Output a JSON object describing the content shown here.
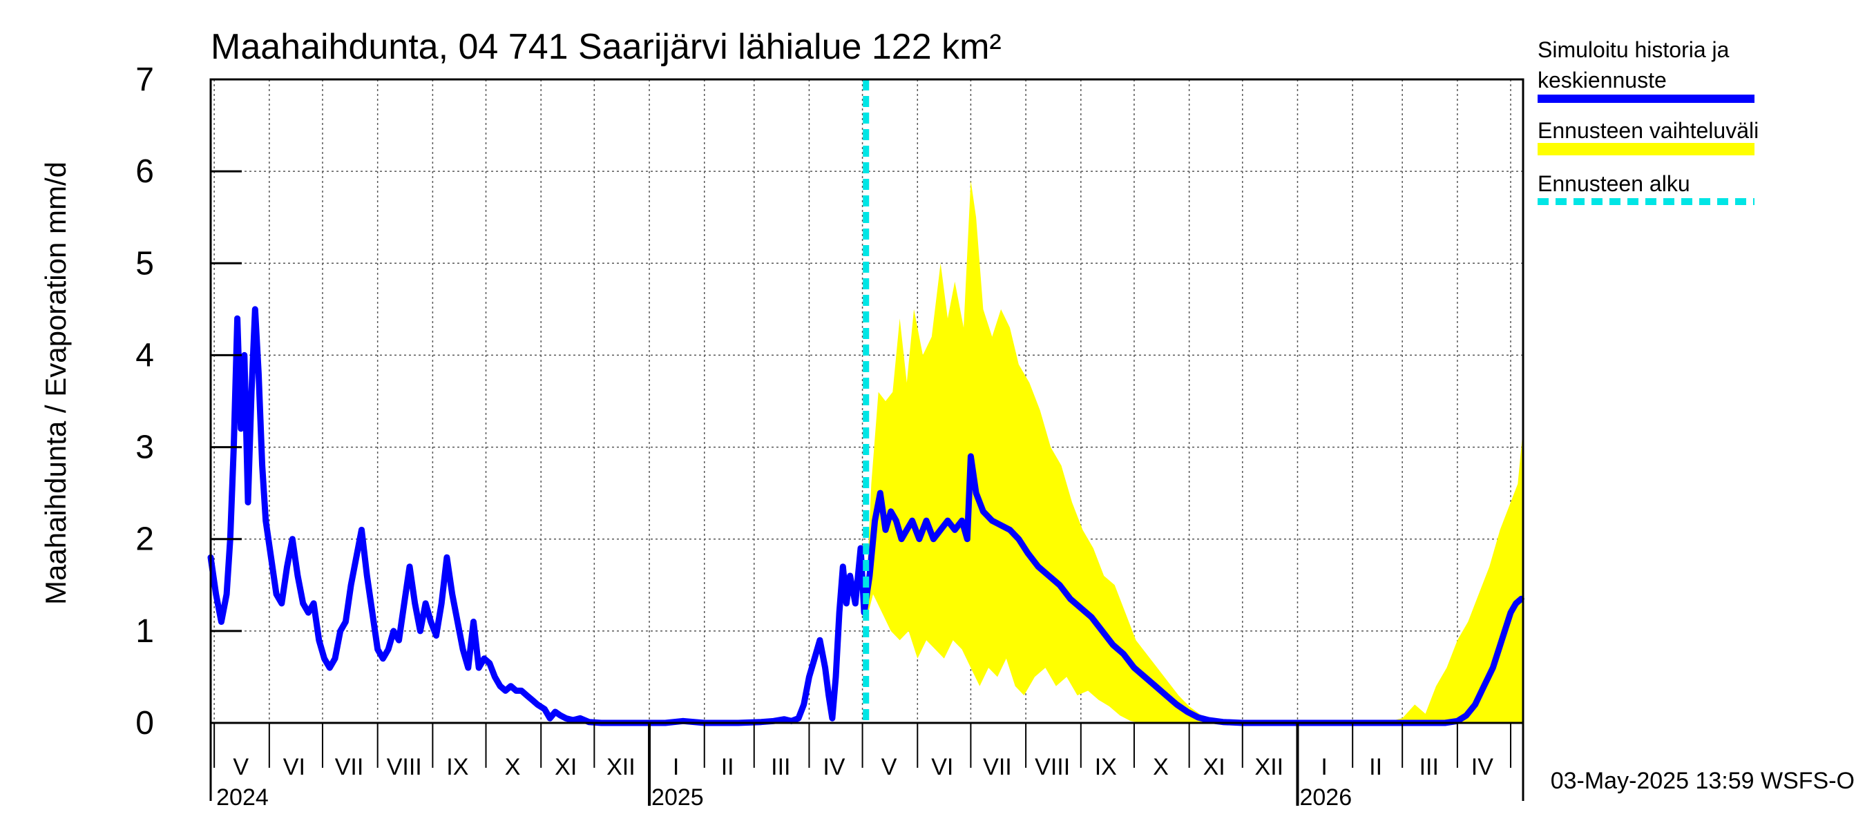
{
  "chart_data": {
    "type": "line",
    "title": "Maahaihdunta, 04 741 Saarijärvi lähialue 122 km²",
    "ylabel": "Maahaihdunta / Evaporation   mm/d",
    "ylim": [
      0,
      7
    ],
    "yticks": [
      "0",
      "1",
      "2",
      "3",
      "4",
      "5",
      "6",
      "7"
    ],
    "x_range": [
      "2024-04-29",
      "2026-05-08"
    ],
    "forecast_start": "2025-05-03",
    "month_ticks": [
      "2024-05-01",
      "2024-06-01",
      "2024-07-01",
      "2024-08-01",
      "2024-09-01",
      "2024-10-01",
      "2024-11-01",
      "2024-12-01",
      "2025-01-01",
      "2025-02-01",
      "2025-03-01",
      "2025-04-01",
      "2025-05-01",
      "2025-06-01",
      "2025-07-01",
      "2025-08-01",
      "2025-09-01",
      "2025-10-01",
      "2025-11-01",
      "2025-12-01",
      "2026-01-01",
      "2026-02-01",
      "2026-03-01",
      "2026-04-01",
      "2026-05-01"
    ],
    "month_labels": [
      {
        "date": "2024-05-16",
        "label": "V"
      },
      {
        "date": "2024-06-15",
        "label": "VI"
      },
      {
        "date": "2024-07-16",
        "label": "VII"
      },
      {
        "date": "2024-08-16",
        "label": "VIII"
      },
      {
        "date": "2024-09-15",
        "label": "IX"
      },
      {
        "date": "2024-10-16",
        "label": "X"
      },
      {
        "date": "2024-11-15",
        "label": "XI"
      },
      {
        "date": "2024-12-16",
        "label": "XII"
      },
      {
        "date": "2025-01-16",
        "label": "I"
      },
      {
        "date": "2025-02-14",
        "label": "II"
      },
      {
        "date": "2025-03-16",
        "label": "III"
      },
      {
        "date": "2025-04-15",
        "label": "IV"
      },
      {
        "date": "2025-05-16",
        "label": "V"
      },
      {
        "date": "2025-06-15",
        "label": "VI"
      },
      {
        "date": "2025-07-16",
        "label": "VII"
      },
      {
        "date": "2025-08-16",
        "label": "VIII"
      },
      {
        "date": "2025-09-15",
        "label": "IX"
      },
      {
        "date": "2025-10-16",
        "label": "X"
      },
      {
        "date": "2025-11-15",
        "label": "XI"
      },
      {
        "date": "2025-12-16",
        "label": "XII"
      },
      {
        "date": "2026-01-16",
        "label": "I"
      },
      {
        "date": "2026-02-14",
        "label": "II"
      },
      {
        "date": "2026-03-16",
        "label": "III"
      },
      {
        "date": "2026-04-15",
        "label": "IV"
      }
    ],
    "year_markers": [
      {
        "date": "2024-05-01",
        "label": "2024"
      },
      {
        "date": "2025-01-01",
        "label": "2025"
      },
      {
        "date": "2026-01-01",
        "label": "2026"
      }
    ],
    "series": [
      {
        "name": "Simuloitu historia ja keskiennuste",
        "color": "#0000ff",
        "points": [
          [
            "2024-04-29",
            1.8
          ],
          [
            "2024-05-02",
            1.4
          ],
          [
            "2024-05-05",
            1.1
          ],
          [
            "2024-05-08",
            1.4
          ],
          [
            "2024-05-10",
            2.0
          ],
          [
            "2024-05-12",
            3.0
          ],
          [
            "2024-05-14",
            4.4
          ],
          [
            "2024-05-16",
            3.2
          ],
          [
            "2024-05-18",
            4.0
          ],
          [
            "2024-05-20",
            2.4
          ],
          [
            "2024-05-22",
            3.6
          ],
          [
            "2024-05-24",
            4.5
          ],
          [
            "2024-05-26",
            3.8
          ],
          [
            "2024-05-28",
            2.8
          ],
          [
            "2024-05-30",
            2.2
          ],
          [
            "2024-06-02",
            1.8
          ],
          [
            "2024-06-05",
            1.4
          ],
          [
            "2024-06-08",
            1.3
          ],
          [
            "2024-06-11",
            1.7
          ],
          [
            "2024-06-14",
            2.0
          ],
          [
            "2024-06-17",
            1.6
          ],
          [
            "2024-06-20",
            1.3
          ],
          [
            "2024-06-23",
            1.2
          ],
          [
            "2024-06-26",
            1.3
          ],
          [
            "2024-06-29",
            0.9
          ],
          [
            "2024-07-02",
            0.7
          ],
          [
            "2024-07-05",
            0.6
          ],
          [
            "2024-07-08",
            0.7
          ],
          [
            "2024-07-11",
            1.0
          ],
          [
            "2024-07-14",
            1.1
          ],
          [
            "2024-07-17",
            1.5
          ],
          [
            "2024-07-20",
            1.8
          ],
          [
            "2024-07-23",
            2.1
          ],
          [
            "2024-07-26",
            1.6
          ],
          [
            "2024-07-29",
            1.2
          ],
          [
            "2024-08-01",
            0.8
          ],
          [
            "2024-08-04",
            0.7
          ],
          [
            "2024-08-07",
            0.8
          ],
          [
            "2024-08-10",
            1.0
          ],
          [
            "2024-08-13",
            0.9
          ],
          [
            "2024-08-16",
            1.3
          ],
          [
            "2024-08-19",
            1.7
          ],
          [
            "2024-08-22",
            1.3
          ],
          [
            "2024-08-25",
            1.0
          ],
          [
            "2024-08-28",
            1.3
          ],
          [
            "2024-08-31",
            1.1
          ],
          [
            "2024-09-03",
            0.95
          ],
          [
            "2024-09-06",
            1.3
          ],
          [
            "2024-09-09",
            1.8
          ],
          [
            "2024-09-12",
            1.4
          ],
          [
            "2024-09-15",
            1.1
          ],
          [
            "2024-09-18",
            0.8
          ],
          [
            "2024-09-21",
            0.6
          ],
          [
            "2024-09-24",
            1.1
          ],
          [
            "2024-09-27",
            0.6
          ],
          [
            "2024-09-30",
            0.7
          ],
          [
            "2024-10-03",
            0.65
          ],
          [
            "2024-10-06",
            0.5
          ],
          [
            "2024-10-09",
            0.4
          ],
          [
            "2024-10-12",
            0.35
          ],
          [
            "2024-10-15",
            0.4
          ],
          [
            "2024-10-18",
            0.35
          ],
          [
            "2024-10-21",
            0.35
          ],
          [
            "2024-10-24",
            0.3
          ],
          [
            "2024-10-27",
            0.25
          ],
          [
            "2024-10-30",
            0.2
          ],
          [
            "2024-11-03",
            0.15
          ],
          [
            "2024-11-06",
            0.05
          ],
          [
            "2024-11-09",
            0.12
          ],
          [
            "2024-11-12",
            0.08
          ],
          [
            "2024-11-15",
            0.05
          ],
          [
            "2024-11-19",
            0.03
          ],
          [
            "2024-11-23",
            0.05
          ],
          [
            "2024-11-28",
            0.01
          ],
          [
            "2024-12-05",
            0.0
          ],
          [
            "2024-12-20",
            0.0
          ],
          [
            "2025-01-10",
            0.0
          ],
          [
            "2025-01-20",
            0.02
          ],
          [
            "2025-02-01",
            0.0
          ],
          [
            "2025-02-20",
            0.0
          ],
          [
            "2025-03-05",
            0.01
          ],
          [
            "2025-03-12",
            0.02
          ],
          [
            "2025-03-18",
            0.04
          ],
          [
            "2025-03-22",
            0.02
          ],
          [
            "2025-03-26",
            0.05
          ],
          [
            "2025-03-29",
            0.2
          ],
          [
            "2025-04-01",
            0.5
          ],
          [
            "2025-04-04",
            0.7
          ],
          [
            "2025-04-07",
            0.9
          ],
          [
            "2025-04-10",
            0.6
          ],
          [
            "2025-04-12",
            0.3
          ],
          [
            "2025-04-14",
            0.05
          ],
          [
            "2025-04-16",
            0.5
          ],
          [
            "2025-04-18",
            1.2
          ],
          [
            "2025-04-20",
            1.7
          ],
          [
            "2025-04-22",
            1.3
          ],
          [
            "2025-04-24",
            1.6
          ],
          [
            "2025-04-27",
            1.3
          ],
          [
            "2025-04-30",
            1.9
          ],
          [
            "2025-05-02",
            1.2
          ],
          [
            "2025-05-05",
            1.6
          ],
          [
            "2025-05-08",
            2.2
          ],
          [
            "2025-05-11",
            2.5
          ],
          [
            "2025-05-14",
            2.1
          ],
          [
            "2025-05-17",
            2.3
          ],
          [
            "2025-05-20",
            2.2
          ],
          [
            "2025-05-23",
            2.0
          ],
          [
            "2025-05-26",
            2.1
          ],
          [
            "2025-05-29",
            2.2
          ],
          [
            "2025-06-02",
            2.0
          ],
          [
            "2025-06-06",
            2.2
          ],
          [
            "2025-06-10",
            2.0
          ],
          [
            "2025-06-14",
            2.1
          ],
          [
            "2025-06-18",
            2.2
          ],
          [
            "2025-06-22",
            2.1
          ],
          [
            "2025-06-26",
            2.2
          ],
          [
            "2025-06-29",
            2.0
          ],
          [
            "2025-07-01",
            2.9
          ],
          [
            "2025-07-04",
            2.5
          ],
          [
            "2025-07-08",
            2.3
          ],
          [
            "2025-07-13",
            2.2
          ],
          [
            "2025-07-18",
            2.15
          ],
          [
            "2025-07-23",
            2.1
          ],
          [
            "2025-07-28",
            2.0
          ],
          [
            "2025-08-02",
            1.85
          ],
          [
            "2025-08-08",
            1.7
          ],
          [
            "2025-08-14",
            1.6
          ],
          [
            "2025-08-20",
            1.5
          ],
          [
            "2025-08-26",
            1.35
          ],
          [
            "2025-09-01",
            1.25
          ],
          [
            "2025-09-07",
            1.15
          ],
          [
            "2025-09-13",
            1.0
          ],
          [
            "2025-09-19",
            0.85
          ],
          [
            "2025-09-25",
            0.75
          ],
          [
            "2025-10-01",
            0.6
          ],
          [
            "2025-10-07",
            0.5
          ],
          [
            "2025-10-13",
            0.4
          ],
          [
            "2025-10-19",
            0.3
          ],
          [
            "2025-10-25",
            0.2
          ],
          [
            "2025-10-31",
            0.12
          ],
          [
            "2025-11-06",
            0.06
          ],
          [
            "2025-11-12",
            0.03
          ],
          [
            "2025-11-20",
            0.01
          ],
          [
            "2025-12-01",
            0.0
          ],
          [
            "2026-01-01",
            0.0
          ],
          [
            "2026-02-01",
            0.0
          ],
          [
            "2026-03-01",
            0.0
          ],
          [
            "2026-03-25",
            0.0
          ],
          [
            "2026-04-01",
            0.02
          ],
          [
            "2026-04-06",
            0.08
          ],
          [
            "2026-04-11",
            0.2
          ],
          [
            "2026-04-16",
            0.4
          ],
          [
            "2026-04-21",
            0.6
          ],
          [
            "2026-04-26",
            0.9
          ],
          [
            "2026-05-01",
            1.2
          ],
          [
            "2026-05-04",
            1.3
          ],
          [
            "2026-05-07",
            1.35
          ]
        ]
      }
    ],
    "band": {
      "name": "Ennusteen vaihteluväli",
      "color": "#ffff00",
      "upper": [
        [
          "2025-05-03",
          1.3
        ],
        [
          "2025-05-06",
          2.6
        ],
        [
          "2025-05-10",
          3.6
        ],
        [
          "2025-05-14",
          3.5
        ],
        [
          "2025-05-18",
          3.6
        ],
        [
          "2025-05-22",
          4.4
        ],
        [
          "2025-05-26",
          3.7
        ],
        [
          "2025-05-30",
          4.5
        ],
        [
          "2025-06-04",
          4.0
        ],
        [
          "2025-06-09",
          4.2
        ],
        [
          "2025-06-14",
          5.0
        ],
        [
          "2025-06-18",
          4.4
        ],
        [
          "2025-06-22",
          4.8
        ],
        [
          "2025-06-27",
          4.3
        ],
        [
          "2025-07-01",
          5.9
        ],
        [
          "2025-07-04",
          5.5
        ],
        [
          "2025-07-08",
          4.5
        ],
        [
          "2025-07-13",
          4.2
        ],
        [
          "2025-07-18",
          4.5
        ],
        [
          "2025-07-23",
          4.3
        ],
        [
          "2025-07-28",
          3.9
        ],
        [
          "2025-08-03",
          3.7
        ],
        [
          "2025-08-09",
          3.4
        ],
        [
          "2025-08-15",
          3.0
        ],
        [
          "2025-08-21",
          2.8
        ],
        [
          "2025-08-27",
          2.4
        ],
        [
          "2025-09-02",
          2.1
        ],
        [
          "2025-09-08",
          1.9
        ],
        [
          "2025-09-14",
          1.6
        ],
        [
          "2025-09-20",
          1.5
        ],
        [
          "2025-09-26",
          1.2
        ],
        [
          "2025-10-02",
          0.9
        ],
        [
          "2025-10-08",
          0.75
        ],
        [
          "2025-10-14",
          0.6
        ],
        [
          "2025-10-20",
          0.45
        ],
        [
          "2025-10-26",
          0.3
        ],
        [
          "2025-11-01",
          0.18
        ],
        [
          "2025-11-08",
          0.08
        ],
        [
          "2025-11-16",
          0.03
        ],
        [
          "2025-12-01",
          0.01
        ],
        [
          "2026-02-20",
          0.01
        ],
        [
          "2026-03-01",
          0.05
        ],
        [
          "2026-03-08",
          0.2
        ],
        [
          "2026-03-14",
          0.1
        ],
        [
          "2026-03-20",
          0.4
        ],
        [
          "2026-03-26",
          0.6
        ],
        [
          "2026-04-01",
          0.9
        ],
        [
          "2026-04-07",
          1.1
        ],
        [
          "2026-04-13",
          1.4
        ],
        [
          "2026-04-19",
          1.7
        ],
        [
          "2026-04-25",
          2.1
        ],
        [
          "2026-05-01",
          2.4
        ],
        [
          "2026-05-05",
          2.6
        ],
        [
          "2026-05-08",
          3.2
        ]
      ],
      "lower": [
        [
          "2025-05-03",
          1.1
        ],
        [
          "2025-05-07",
          1.4
        ],
        [
          "2025-05-12",
          1.2
        ],
        [
          "2025-05-17",
          1.0
        ],
        [
          "2025-05-22",
          0.9
        ],
        [
          "2025-05-27",
          1.0
        ],
        [
          "2025-06-01",
          0.7
        ],
        [
          "2025-06-06",
          0.9
        ],
        [
          "2025-06-11",
          0.8
        ],
        [
          "2025-06-16",
          0.7
        ],
        [
          "2025-06-21",
          0.9
        ],
        [
          "2025-06-26",
          0.8
        ],
        [
          "2025-07-01",
          0.6
        ],
        [
          "2025-07-06",
          0.4
        ],
        [
          "2025-07-11",
          0.6
        ],
        [
          "2025-07-16",
          0.5
        ],
        [
          "2025-07-21",
          0.7
        ],
        [
          "2025-07-26",
          0.4
        ],
        [
          "2025-07-31",
          0.3
        ],
        [
          "2025-08-06",
          0.5
        ],
        [
          "2025-08-12",
          0.6
        ],
        [
          "2025-08-18",
          0.4
        ],
        [
          "2025-08-24",
          0.5
        ],
        [
          "2025-08-30",
          0.3
        ],
        [
          "2025-09-05",
          0.35
        ],
        [
          "2025-09-11",
          0.25
        ],
        [
          "2025-09-17",
          0.18
        ],
        [
          "2025-09-23",
          0.08
        ],
        [
          "2025-09-29",
          0.02
        ],
        [
          "2025-10-05",
          0.0
        ],
        [
          "2026-05-08",
          0.0
        ]
      ]
    },
    "legend": {
      "position": "right",
      "items": [
        {
          "label": "Simuloitu historia ja keskiennuste",
          "color": "#0000ff",
          "style": "line"
        },
        {
          "label": "Ennusteen vaihteluväli",
          "color": "#ffff00",
          "style": "band"
        },
        {
          "label": "Ennusteen alku",
          "color": "#00e5e5",
          "style": "dashed"
        }
      ]
    },
    "grid": true,
    "footer": "03-May-2025 13:59 WSFS-O"
  }
}
